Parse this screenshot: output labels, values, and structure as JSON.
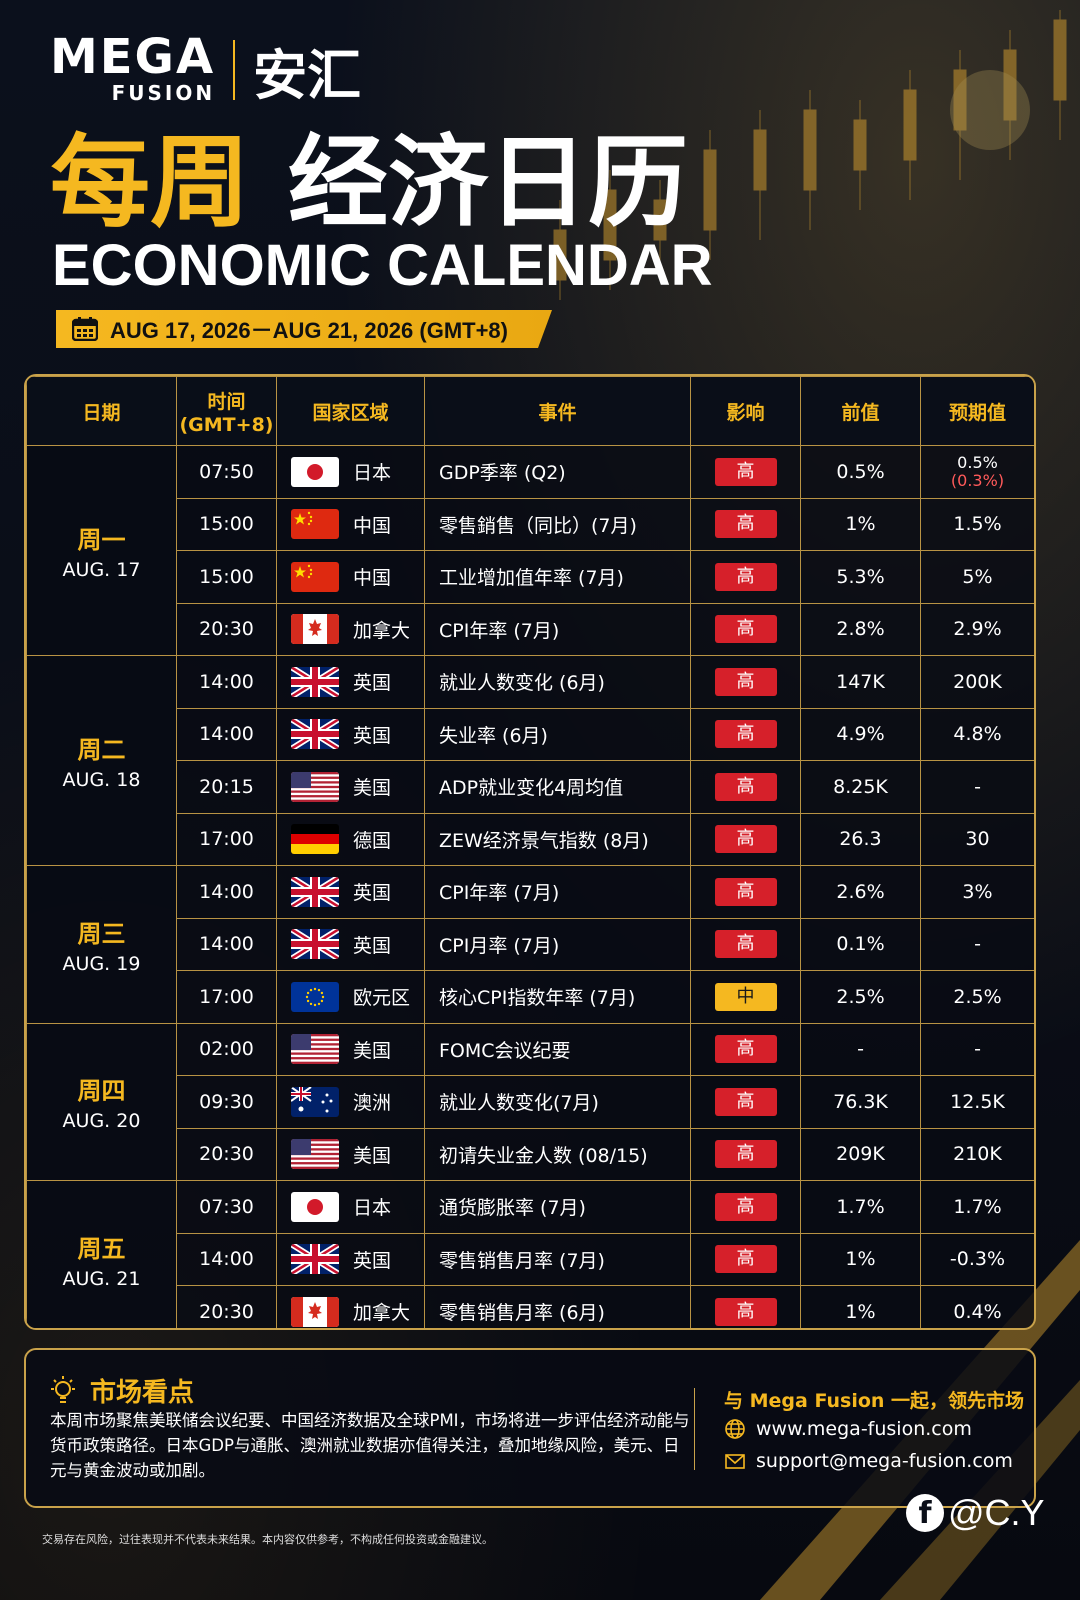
{
  "brand": {
    "mega": "MEGA",
    "fusion": "FUSION",
    "cn_name": "安汇"
  },
  "title": {
    "cn_part1": "每周",
    "cn_part2": "经济日历",
    "en": "ECONOMIC CALENDAR"
  },
  "date_range": "AUG 17, 2026－AUG 21, 2026 (GMT+8)",
  "table": {
    "headers": {
      "day": "日期",
      "time": "时间\n(GMT+8)",
      "time_line1": "时间",
      "time_line2": "(GMT+8)",
      "country": "国家区域",
      "event": "事件",
      "impact": "影响",
      "previous": "前值",
      "forecast": "预期值"
    },
    "days": [
      {
        "name": "周一",
        "date": "AUG. 17",
        "rows": [
          {
            "time": "07:50",
            "flag": "japan-flag-icon",
            "country": "日本",
            "event": "GDP季率 (Q2)",
            "impact": "高",
            "level": "high",
            "prev": "0.5%",
            "forecast": "0.5%",
            "forecast_sub": "(0.3%)"
          },
          {
            "time": "15:00",
            "flag": "china-flag-icon",
            "country": "中国",
            "event": "零售銷售（同比）(7月)",
            "impact": "高",
            "level": "high",
            "prev": "1%",
            "forecast": "1.5%"
          },
          {
            "time": "15:00",
            "flag": "china-flag-icon",
            "country": "中国",
            "event": "工业增加值年率 (7月)",
            "impact": "高",
            "level": "high",
            "prev": "5.3%",
            "forecast": "5%"
          },
          {
            "time": "20:30",
            "flag": "canada-flag-icon",
            "country": "加拿大",
            "event": "CPI年率 (7月)",
            "impact": "高",
            "level": "high",
            "prev": "2.8%",
            "forecast": "2.9%"
          }
        ]
      },
      {
        "name": "周二",
        "date": "AUG. 18",
        "rows": [
          {
            "time": "14:00",
            "flag": "uk-flag-icon",
            "country": "英国",
            "event": "就业人数变化 (6月)",
            "impact": "高",
            "level": "high",
            "prev": "147K",
            "forecast": "200K"
          },
          {
            "time": "14:00",
            "flag": "uk-flag-icon",
            "country": "英国",
            "event": "失业率 (6月)",
            "impact": "高",
            "level": "high",
            "prev": "4.9%",
            "forecast": "4.8%"
          },
          {
            "time": "20:15",
            "flag": "us-flag-icon",
            "country": "美国",
            "event": "ADP就业变化4周均值",
            "impact": "高",
            "level": "high",
            "prev": "8.25K",
            "forecast": "-"
          },
          {
            "time": "17:00",
            "flag": "germany-flag-icon",
            "country": "德国",
            "event": "ZEW经济景气指数 (8月)",
            "impact": "高",
            "level": "high",
            "prev": "26.3",
            "forecast": "30"
          }
        ]
      },
      {
        "name": "周三",
        "date": "AUG. 19",
        "rows": [
          {
            "time": "14:00",
            "flag": "uk-flag-icon",
            "country": "英国",
            "event": "CPI年率 (7月)",
            "impact": "高",
            "level": "high",
            "prev": "2.6%",
            "forecast": "3%"
          },
          {
            "time": "14:00",
            "flag": "uk-flag-icon",
            "country": "英国",
            "event": "CPI月率 (7月)",
            "impact": "高",
            "level": "high",
            "prev": "0.1%",
            "forecast": "-"
          },
          {
            "time": "17:00",
            "flag": "eu-flag-icon",
            "country": "欧元区",
            "event": "核心CPI指数年率 (7月)",
            "impact": "中",
            "level": "mid",
            "prev": "2.5%",
            "forecast": "2.5%"
          }
        ]
      },
      {
        "name": "周四",
        "date": "AUG. 20",
        "rows": [
          {
            "time": "02:00",
            "flag": "us-flag-icon",
            "country": "美国",
            "event": "FOMC会议纪要",
            "impact": "高",
            "level": "high",
            "prev": "-",
            "forecast": "-"
          },
          {
            "time": "09:30",
            "flag": "australia-flag-icon",
            "country": "澳洲",
            "event": "就业人数变化(7月)",
            "impact": "高",
            "level": "high",
            "prev": "76.3K",
            "forecast": "12.5K"
          },
          {
            "time": "20:30",
            "flag": "us-flag-icon",
            "country": "美国",
            "event": "初请失业金人数 (08/15)",
            "impact": "高",
            "level": "high",
            "prev": "209K",
            "forecast": "210K"
          }
        ]
      },
      {
        "name": "周五",
        "date": "AUG. 21",
        "rows": [
          {
            "time": "07:30",
            "flag": "japan-flag-icon",
            "country": "日本",
            "event": "通货膨胀率 (7月)",
            "impact": "高",
            "level": "high",
            "prev": "1.7%",
            "forecast": "1.7%"
          },
          {
            "time": "14:00",
            "flag": "uk-flag-icon",
            "country": "英国",
            "event": "零售销售月率 (7月)",
            "impact": "高",
            "level": "high",
            "prev": "1%",
            "forecast": "-0.3%"
          },
          {
            "time": "20:30",
            "flag": "canada-flag-icon",
            "country": "加拿大",
            "event": "零售销售月率 (6月)",
            "impact": "高",
            "level": "high",
            "prev": "1%",
            "forecast": "0.4%"
          }
        ]
      }
    ]
  },
  "market": {
    "title": "市场看点",
    "text": "本周市场聚焦美联储会议纪要、中国经济数据及全球PMI，市场将进一步评估经济动能与货币政策路径。日本GDP与通胀、澳洲就业数据亦值得关注，叠加地缘风险，美元、日元与黄金波动或加剧。",
    "slogan": "与 Mega Fusion 一起，领先市场",
    "website": "www.mega-fusion.com",
    "email": "support@mega-fusion.com"
  },
  "disclaimer": "交易存在风险，过往表现并不代表未来结果。本内容仅供参考，不构成任何投资或金融建议。",
  "social": {
    "handle": "@C.Y"
  },
  "colors": {
    "gold": "#f5b820",
    "high": "#d6202a",
    "mid": "#f5b820",
    "border": "#b89344"
  }
}
